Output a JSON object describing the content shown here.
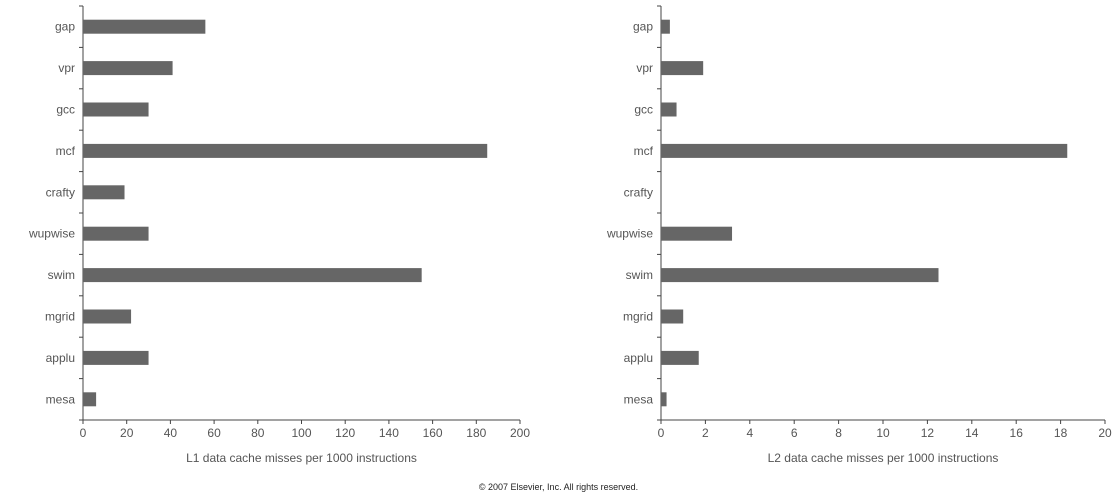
{
  "chart_data": [
    {
      "type": "bar",
      "orientation": "horizontal",
      "categories": [
        "gap",
        "vpr",
        "gcc",
        "mcf",
        "crafty",
        "wupwise",
        "swim",
        "mgrid",
        "applu",
        "mesa"
      ],
      "values": [
        56,
        41,
        30,
        185,
        19,
        30,
        155,
        22,
        30,
        6
      ],
      "xlabel": "L1 data cache misses per 1000 instructions",
      "xlim": [
        0,
        200
      ],
      "xticks": [
        0,
        20,
        40,
        60,
        80,
        100,
        120,
        140,
        160,
        180,
        200
      ],
      "bar_color": "#666666",
      "grid": false
    },
    {
      "type": "bar",
      "orientation": "horizontal",
      "categories": [
        "gap",
        "vpr",
        "gcc",
        "mcf",
        "crafty",
        "wupwise",
        "swim",
        "mgrid",
        "applu",
        "mesa"
      ],
      "values": [
        0.4,
        1.9,
        0.7,
        18.3,
        0.0,
        3.2,
        12.5,
        1.0,
        1.7,
        0.25
      ],
      "xlabel": "L2 data cache misses per 1000 instructions",
      "xlim": [
        0,
        20
      ],
      "xticks": [
        0,
        2,
        4,
        6,
        8,
        10,
        12,
        14,
        16,
        18,
        20
      ],
      "bar_color": "#666666",
      "grid": false
    }
  ],
  "footer": {
    "copyright": "© 2007 Elsevier, Inc. All rights reserved."
  }
}
